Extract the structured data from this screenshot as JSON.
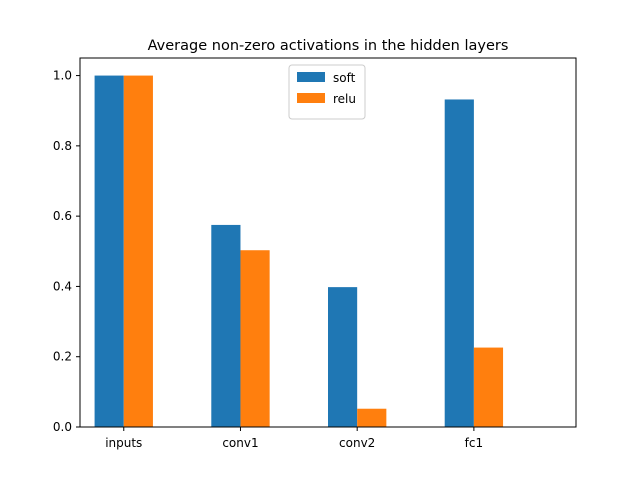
{
  "chart_data": {
    "type": "bar",
    "title": "Average non-zero activations in the hidden layers",
    "xlabel": "",
    "ylabel": "",
    "categories": [
      "inputs",
      "conv1",
      "conv2",
      "fc1"
    ],
    "series": [
      {
        "name": "soft",
        "values": [
          1.0,
          0.575,
          0.398,
          0.932
        ],
        "color": "#1f77b4"
      },
      {
        "name": "relu",
        "values": [
          1.0,
          0.503,
          0.052,
          0.226
        ],
        "color": "#ff7f0e"
      }
    ],
    "ylim": [
      0,
      1.05
    ],
    "yticks": [
      0.0,
      0.2,
      0.4,
      0.6,
      0.8,
      1.0
    ],
    "ytick_labels": [
      "0.0",
      "0.2",
      "0.4",
      "0.6",
      "0.8",
      "1.0"
    ],
    "grid": false,
    "legend_position": "top-center"
  }
}
